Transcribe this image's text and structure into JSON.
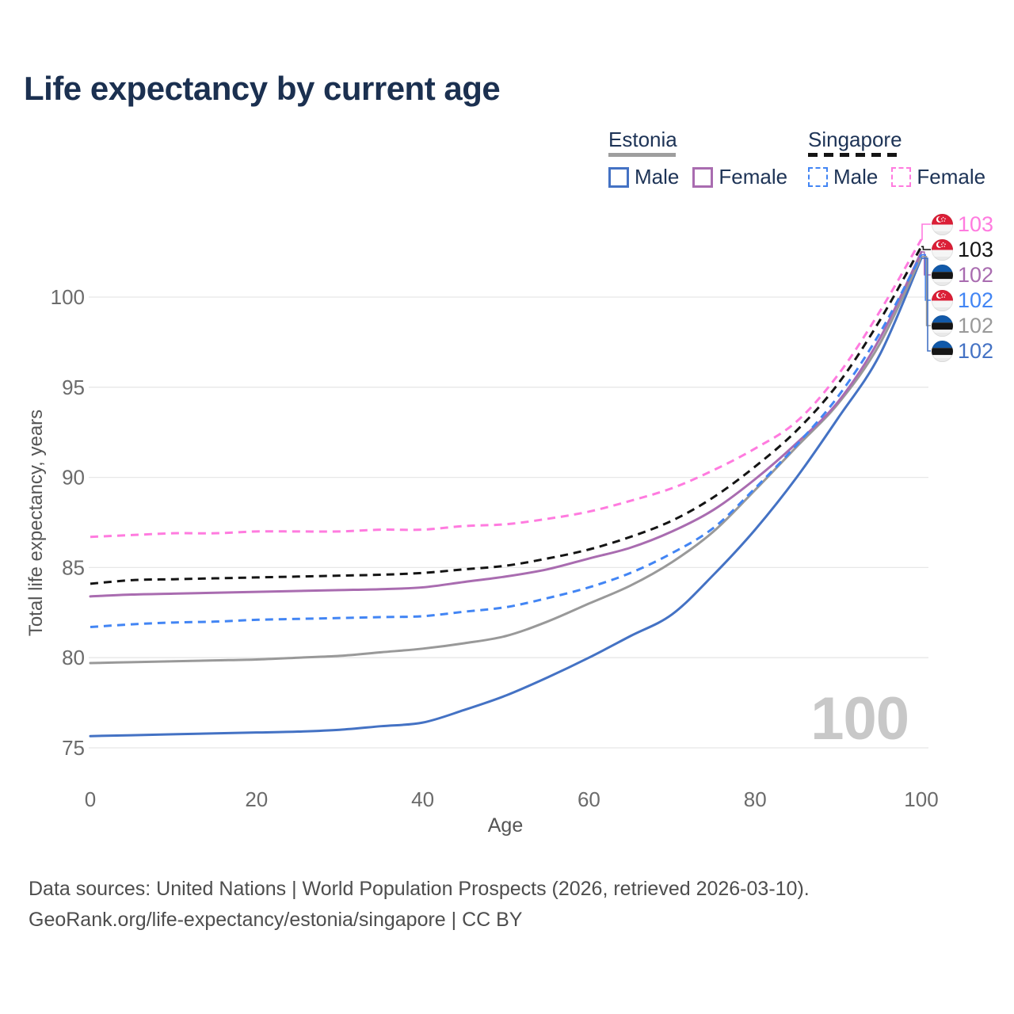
{
  "header": {
    "title": "Life expectancy by current age"
  },
  "legend": {
    "groups": [
      {
        "label": "Estonia",
        "line_style": "solid",
        "line_color": "#9E9E9E",
        "items": [
          {
            "label": "Male",
            "swatch_color": "#4472C4",
            "swatch_style": "solid"
          },
          {
            "label": "Female",
            "swatch_color": "#A96CB0",
            "swatch_style": "solid"
          }
        ]
      },
      {
        "label": "Singapore",
        "line_style": "dashed",
        "line_color": "#141414",
        "items": [
          {
            "label": "Male",
            "swatch_color": "#4285F4",
            "swatch_style": "dashed"
          },
          {
            "label": "Female",
            "swatch_color": "#FF7BDF",
            "swatch_style": "dashed"
          }
        ]
      }
    ]
  },
  "chart_data": {
    "type": "line",
    "title": "Life expectancy by current age",
    "xlabel": "Age",
    "ylabel": "Total life expectancy, years",
    "x": [
      0,
      5,
      10,
      15,
      20,
      25,
      30,
      35,
      40,
      45,
      50,
      55,
      60,
      65,
      70,
      75,
      80,
      85,
      90,
      95,
      100
    ],
    "xticks": [
      0,
      20,
      40,
      60,
      80,
      100
    ],
    "yticks": [
      75,
      80,
      85,
      90,
      95,
      100
    ],
    "xlim": [
      0,
      100
    ],
    "ylim": [
      75,
      100
    ],
    "grid": true,
    "legend_position": "top-right",
    "watermark": "100",
    "series": [
      {
        "name": "Estonia Male",
        "country": "Estonia",
        "sex": "Male",
        "color": "#4472C4",
        "dash": false,
        "values": [
          75.65,
          75.7,
          75.75,
          75.8,
          75.85,
          75.9,
          76.0,
          76.2,
          76.4,
          77.1,
          77.9,
          78.9,
          80.0,
          81.2,
          82.4,
          84.6,
          87.1,
          90.0,
          93.3,
          96.8,
          102.15
        ]
      },
      {
        "name": "Estonia",
        "country": "Estonia",
        "sex": "Both sexes",
        "color": "#999999",
        "dash": false,
        "values": [
          79.7,
          79.75,
          79.8,
          79.85,
          79.9,
          80.0,
          80.1,
          80.3,
          80.5,
          80.8,
          81.2,
          82.0,
          83.0,
          84.0,
          85.3,
          87.0,
          89.3,
          91.7,
          94.1,
          97.4,
          102.25
        ]
      },
      {
        "name": "Estonia Female",
        "country": "Estonia",
        "sex": "Female",
        "color": "#A96CB0",
        "dash": false,
        "values": [
          83.4,
          83.5,
          83.55,
          83.6,
          83.65,
          83.7,
          83.75,
          83.8,
          83.9,
          84.2,
          84.5,
          84.9,
          85.5,
          86.1,
          87.0,
          88.2,
          89.9,
          91.9,
          94.2,
          97.7,
          102.5
        ]
      },
      {
        "name": "Singapore Male",
        "country": "Singapore",
        "sex": "Male",
        "color": "#4285F4",
        "dash": true,
        "values": [
          81.7,
          81.85,
          81.95,
          82.0,
          82.1,
          82.15,
          82.2,
          82.25,
          82.3,
          82.55,
          82.8,
          83.3,
          83.9,
          84.7,
          85.8,
          87.2,
          89.4,
          91.8,
          94.5,
          98.0,
          102.35
        ]
      },
      {
        "name": "Singapore",
        "country": "Singapore",
        "sex": "Both sexes",
        "color": "#141414",
        "dash": true,
        "values": [
          84.1,
          84.3,
          84.35,
          84.4,
          84.45,
          84.5,
          84.55,
          84.6,
          84.7,
          84.9,
          85.1,
          85.5,
          86.0,
          86.7,
          87.6,
          88.9,
          90.6,
          92.6,
          95.2,
          98.7,
          102.8
        ]
      },
      {
        "name": "Singapore Female",
        "country": "Singapore",
        "sex": "Female",
        "color": "#FF7BDF",
        "dash": true,
        "values": [
          86.7,
          86.8,
          86.9,
          86.9,
          87.0,
          87.0,
          87.0,
          87.1,
          87.1,
          87.3,
          87.4,
          87.7,
          88.1,
          88.7,
          89.4,
          90.4,
          91.6,
          93.1,
          95.7,
          99.2,
          103.2
        ]
      }
    ],
    "end_labels": [
      {
        "value": "103",
        "flag": "singapore",
        "color": "#FF7BDF",
        "series": "Singapore Female"
      },
      {
        "value": "103",
        "flag": "singapore",
        "color": "#141414",
        "series": "Singapore"
      },
      {
        "value": "102",
        "flag": "estonia",
        "color": "#A96CB0",
        "series": "Estonia Female"
      },
      {
        "value": "102",
        "flag": "singapore",
        "color": "#4285F4",
        "series": "Singapore Male"
      },
      {
        "value": "102",
        "flag": "estonia",
        "color": "#999999",
        "series": "Estonia"
      },
      {
        "value": "102",
        "flag": "estonia",
        "color": "#4472C4",
        "series": "Estonia Male"
      }
    ]
  },
  "footer": {
    "line1": "Data sources: United Nations | World Population Prospects (2026, retrieved 2026-03-10).",
    "line2": "GeoRank.org/life-expectancy/estonia/singapore | CC BY"
  }
}
